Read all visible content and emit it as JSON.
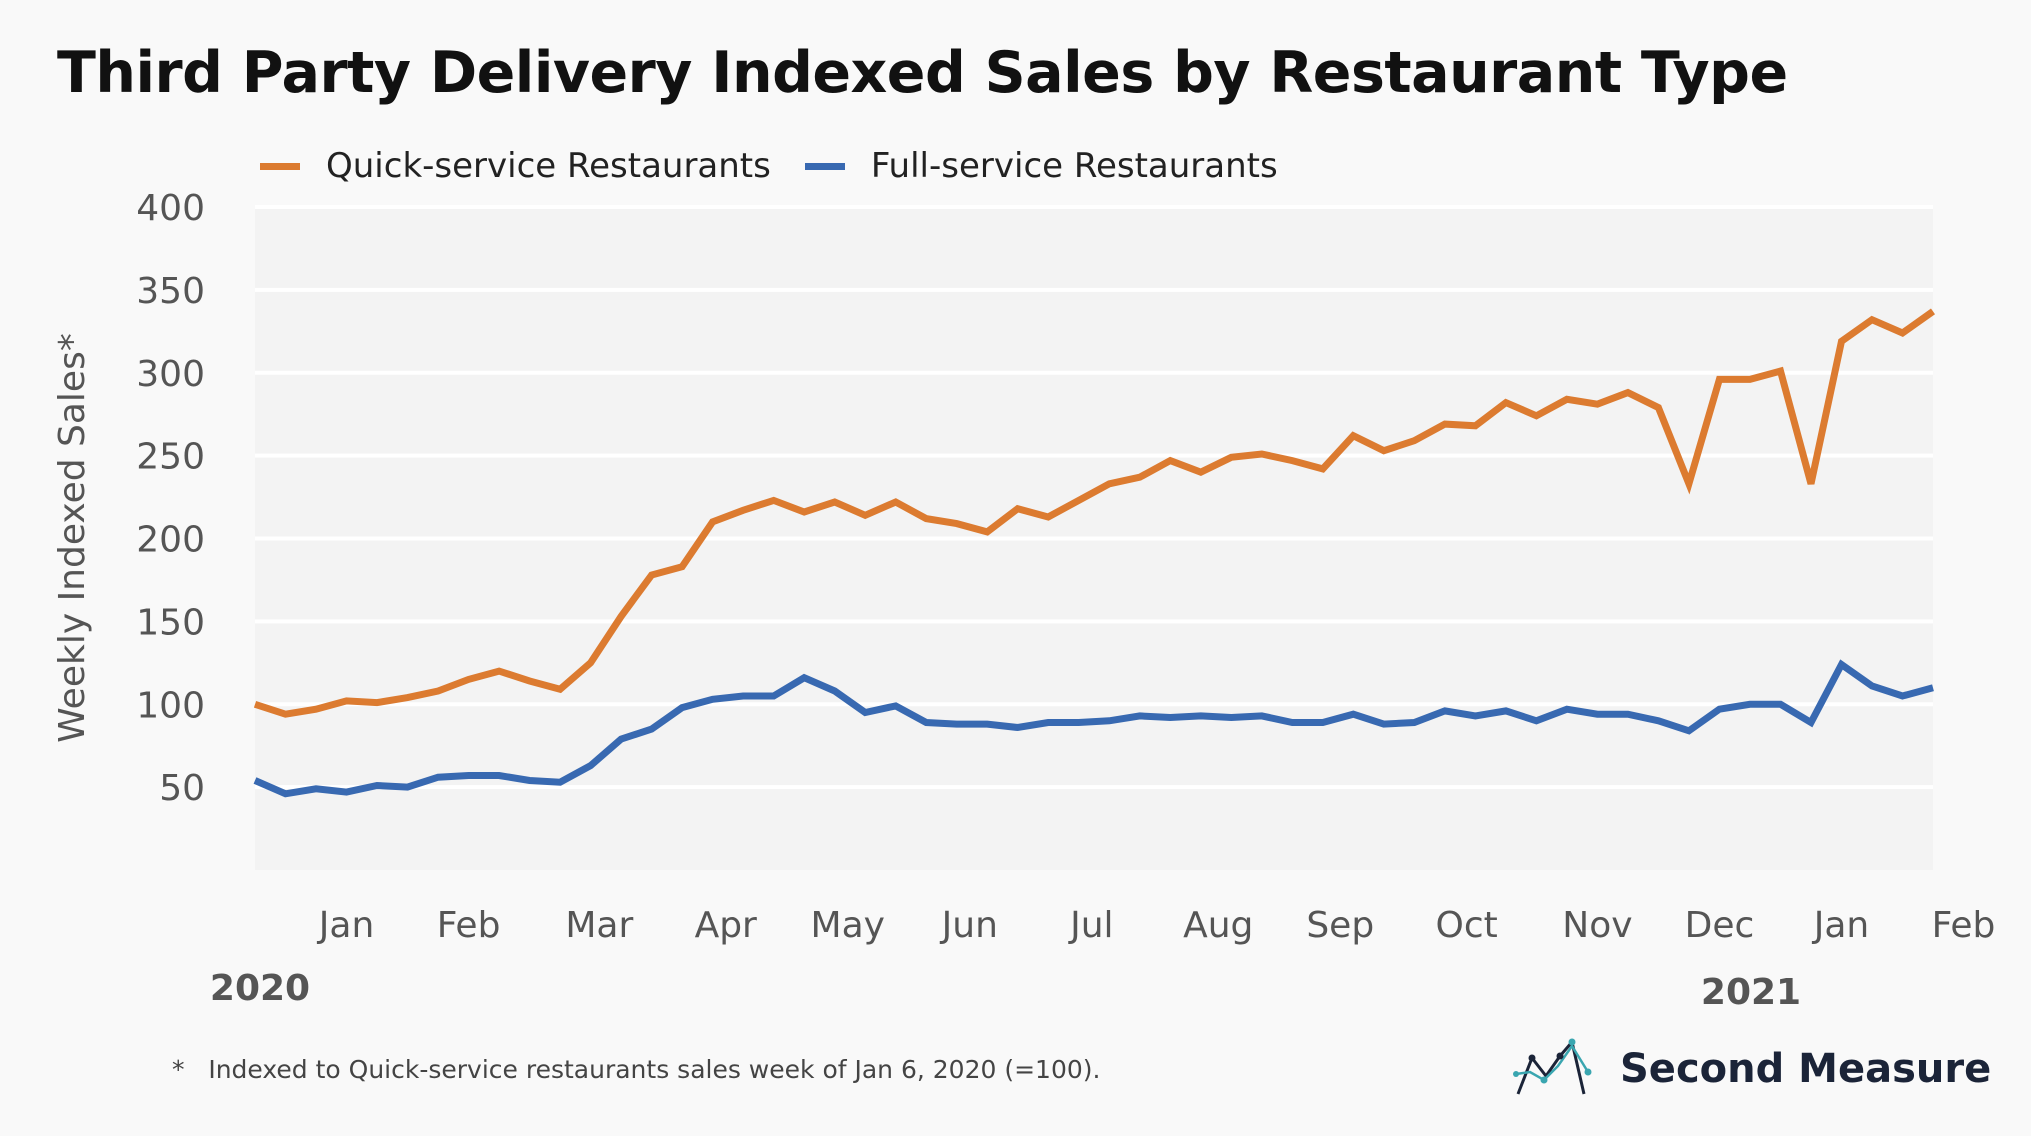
{
  "chart_data": {
    "type": "line",
    "title": "Third Party Delivery Indexed Sales by Restaurant Type",
    "ylabel": "Weekly Indexed Sales*",
    "xlabel": "",
    "ylim": [
      0,
      400
    ],
    "yticks": [
      50,
      100,
      150,
      200,
      250,
      300,
      350,
      400
    ],
    "grid": true,
    "legend_placement": "top-left",
    "x_start": "2020-01-06",
    "x_step_days": 7,
    "xticks": [
      {
        "date": "2020-01-27",
        "label": "Jan"
      },
      {
        "date": "2020-02-24",
        "label": "Feb"
      },
      {
        "date": "2020-03-25",
        "label": "Mar"
      },
      {
        "date": "2020-04-23",
        "label": "Apr"
      },
      {
        "date": "2020-05-21",
        "label": "May"
      },
      {
        "date": "2020-06-18",
        "label": "Jun"
      },
      {
        "date": "2020-07-16",
        "label": "Jul"
      },
      {
        "date": "2020-08-14",
        "label": "Aug"
      },
      {
        "date": "2020-09-11",
        "label": "Sep"
      },
      {
        "date": "2020-10-10",
        "label": "Oct"
      },
      {
        "date": "2020-11-09",
        "label": "Nov"
      },
      {
        "date": "2020-12-07",
        "label": "Dec"
      },
      {
        "date": "2021-01-04",
        "label": "Jan"
      },
      {
        "date": "2021-02-01",
        "label": "Feb"
      }
    ],
    "year_labels": [
      "2020",
      "2021"
    ],
    "series": [
      {
        "name": "Quick-service Restaurants",
        "color": "#dc7b30",
        "values": [
          100,
          94,
          97,
          102,
          101,
          104,
          108,
          115,
          120,
          114,
          109,
          125,
          153,
          178,
          183,
          210,
          217,
          223,
          216,
          222,
          214,
          222,
          212,
          209,
          204,
          218,
          213,
          223,
          233,
          237,
          247,
          240,
          249,
          251,
          247,
          242,
          262,
          253,
          259,
          269,
          268,
          282,
          274,
          284,
          281,
          288,
          279,
          233,
          296,
          296,
          301,
          233,
          319,
          332,
          324,
          337
        ]
      },
      {
        "name": "Full-service Restaurants",
        "color": "#3869b1",
        "values": [
          54,
          46,
          49,
          47,
          51,
          50,
          56,
          57,
          57,
          54,
          53,
          63,
          79,
          85,
          98,
          103,
          105,
          105,
          116,
          108,
          95,
          99,
          89,
          88,
          88,
          86,
          89,
          89,
          90,
          93,
          92,
          93,
          92,
          93,
          89,
          89,
          94,
          88,
          89,
          96,
          93,
          96,
          90,
          97,
          94,
          94,
          90,
          84,
          97,
          100,
          100,
          89,
          124,
          111,
          105,
          110
        ]
      }
    ],
    "plot_background": "#f3f3f3",
    "gridline_color": "#ffffff"
  },
  "footnote": {
    "marker": "*",
    "text": "Indexed to Quick-service restaurants sales week of Jan 6, 2020 (=100)."
  },
  "logo": {
    "text": "Second Measure",
    "icon": "line-chart-logo-icon"
  }
}
